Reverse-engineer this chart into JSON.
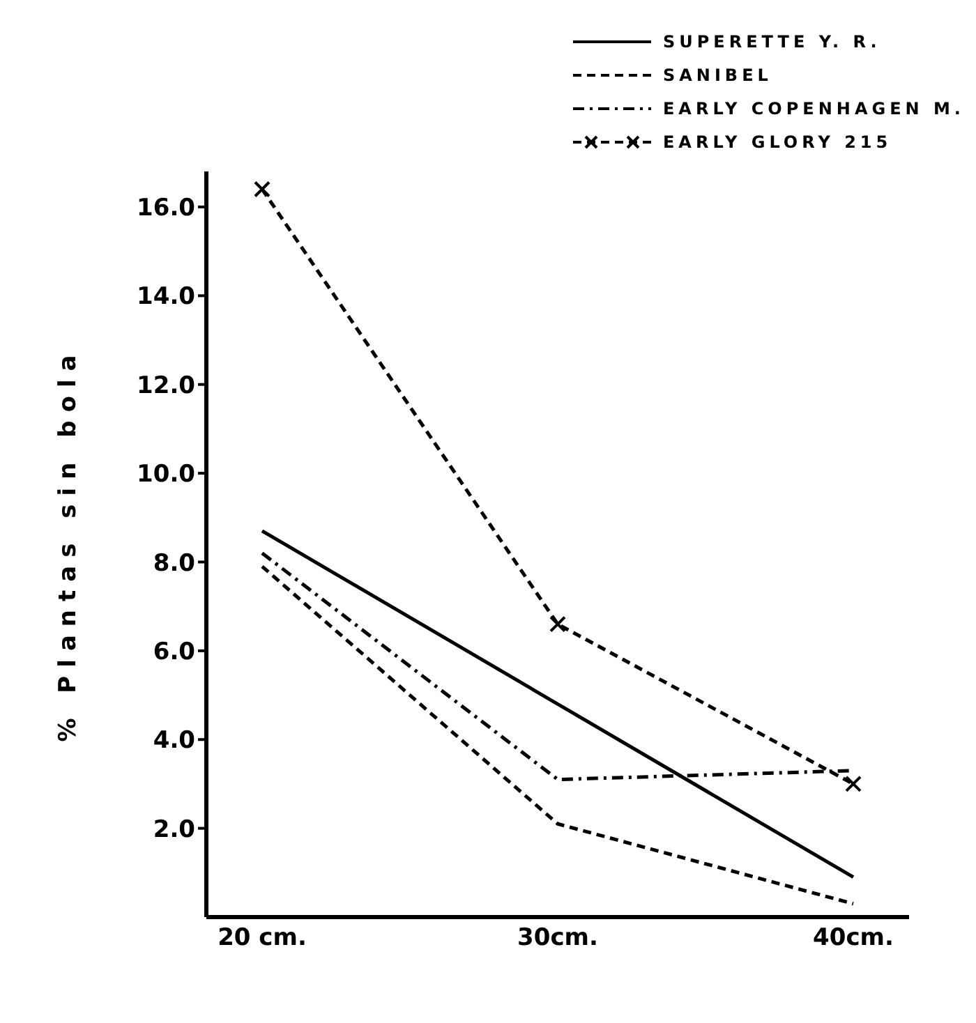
{
  "chart_data": {
    "type": "line",
    "ylabel": "% Plantas sin bola",
    "categories": [
      "20 cm.",
      "30cm.",
      "40cm."
    ],
    "series": [
      {
        "name": "SUPERETTE Y. R.",
        "color": "#000000",
        "line_style": "solid",
        "values": [
          8.7,
          4.8,
          0.9
        ]
      },
      {
        "name": "SANIBEL",
        "color": "#000000",
        "line_style": "dashed",
        "values": [
          7.9,
          2.1,
          0.3
        ]
      },
      {
        "name": "EARLY COPENHAGEN M.",
        "color": "#000000",
        "line_style": "dashdot",
        "values": [
          8.2,
          3.1,
          3.3
        ]
      },
      {
        "name": "EARLY GLORY 215",
        "color": "#000000",
        "line_style": "dashed",
        "marker": "cross",
        "values": [
          16.4,
          6.6,
          3.0
        ]
      }
    ],
    "ylim": [
      0,
      16.8
    ],
    "yticks": [
      {
        "value": 2,
        "label": "2.0"
      },
      {
        "value": 4,
        "label": "4.0"
      },
      {
        "value": 6,
        "label": "6.0"
      },
      {
        "value": 8,
        "label": "8.0"
      },
      {
        "value": 10,
        "label": "10.0"
      },
      {
        "value": 12,
        "label": "12.0"
      },
      {
        "value": 14,
        "label": "14.0"
      },
      {
        "value": 16,
        "label": "16.0"
      }
    ],
    "grid": false,
    "legend": "top right"
  }
}
